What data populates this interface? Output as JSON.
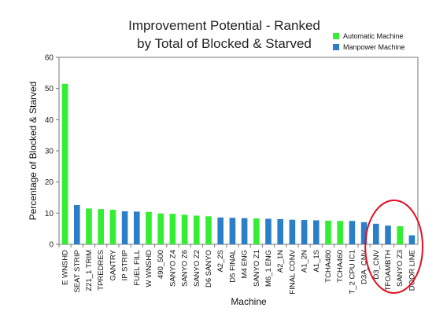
{
  "chart_data": {
    "type": "bar",
    "title_lines": [
      "Improvement Potential - Ranked",
      "by Total of Blocked & Starved"
    ],
    "xlabel": "Machine",
    "ylabel": "Percentage of Blocked & Starved",
    "ylim": [
      0,
      60
    ],
    "yticks": [
      0,
      10,
      20,
      30,
      40,
      50,
      60
    ],
    "grid": false,
    "legend_position": "top-right",
    "series_info": [
      {
        "name": "Automatic Machine",
        "color": "#33ee33"
      },
      {
        "name": "Manpower Machine",
        "color": "#2b7fc9"
      }
    ],
    "categories": [
      "E WNSHD",
      "SEAT STRIP",
      "Z21_1 TRIM",
      "TPREDRES",
      "GANTRY",
      "IP STRIP",
      "FUEL FILL",
      "W WNSHD",
      "490_500",
      "SANYO Z4",
      "SANYO Z6",
      "SANYO Z2",
      "D6 SANYO",
      "A2_2S",
      "D5 FINAL",
      "M4 ENG",
      "SANYO Z1",
      "M6_1 ENG",
      "A2_1N",
      "FINAL CONV",
      "A1_2N",
      "A1_1S",
      "TCHA480",
      "TCHA460",
      "T_2 CPU IC1",
      "D3A_CNV",
      "D3_CNV",
      "TFOAMBTH",
      "SANYO Z3",
      "DOOR LINE"
    ],
    "values": [
      51.5,
      12.6,
      11.5,
      11.3,
      11.1,
      10.6,
      10.5,
      10.4,
      9.9,
      9.8,
      9.5,
      9.2,
      9.0,
      8.6,
      8.5,
      8.4,
      8.3,
      8.2,
      8.1,
      7.9,
      7.8,
      7.7,
      7.6,
      7.5,
      7.5,
      7.1,
      6.6,
      6.0,
      5.8,
      2.9
    ],
    "bar_types": [
      "Automatic Machine",
      "Manpower Machine",
      "Automatic Machine",
      "Automatic Machine",
      "Automatic Machine",
      "Manpower Machine",
      "Manpower Machine",
      "Automatic Machine",
      "Automatic Machine",
      "Automatic Machine",
      "Automatic Machine",
      "Automatic Machine",
      "Automatic Machine",
      "Manpower Machine",
      "Manpower Machine",
      "Manpower Machine",
      "Automatic Machine",
      "Manpower Machine",
      "Manpower Machine",
      "Manpower Machine",
      "Manpower Machine",
      "Manpower Machine",
      "Automatic Machine",
      "Automatic Machine",
      "Manpower Machine",
      "Manpower Machine",
      "Manpower Machine",
      "Manpower Machine",
      "Automatic Machine",
      "Manpower Machine"
    ],
    "annotation": {
      "shape": "ellipse",
      "color": "#e01020",
      "marks": [
        "D3_CNV",
        "TFOAMBTH",
        "SANYO Z3",
        "DOOR LINE"
      ]
    }
  }
}
